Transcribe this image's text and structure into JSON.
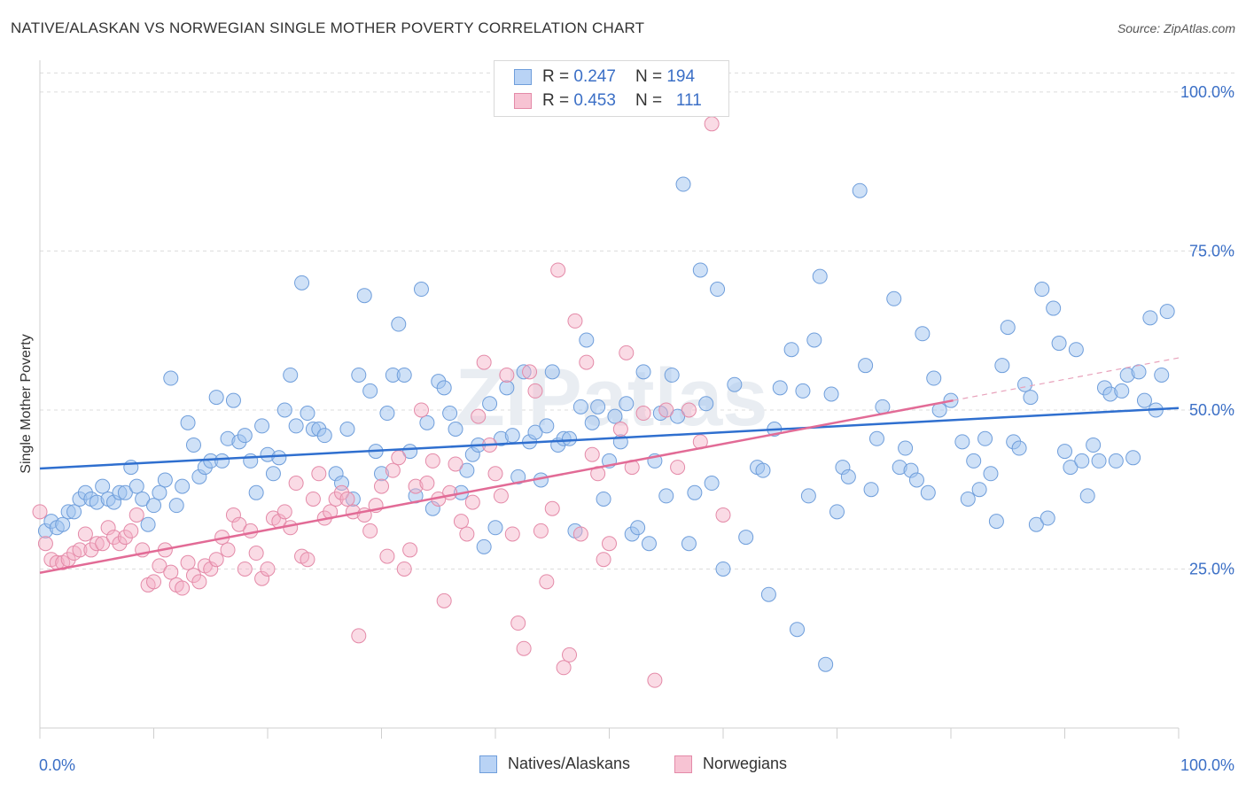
{
  "title": "NATIVE/ALASKAN VS NORWEGIAN SINGLE MOTHER POVERTY CORRELATION CHART",
  "source": "Source: ZipAtlas.com",
  "watermark": "ZIPatlas",
  "legend": {
    "rows": [
      {
        "r_label": "R =",
        "r_value": "0.247",
        "n_label": "N =",
        "n_value": "194",
        "color": "#6f9edb"
      },
      {
        "r_label": "R =",
        "r_value": "0.453",
        "n_label": "N =",
        "n_value": "111",
        "color": "#e48aa8"
      }
    ]
  },
  "bottom_legend": [
    "Natives/Alaskans",
    "Norwegians"
  ],
  "chart_data": {
    "type": "scatter",
    "ylabel": "Single Mother Poverty",
    "xlabel": "",
    "x_tick_labels": [
      "0.0%",
      "100.0%"
    ],
    "y_tick_labels": [
      "25.0%",
      "50.0%",
      "75.0%",
      "100.0%"
    ],
    "xlim": [
      0,
      100
    ],
    "ylim": [
      0,
      105
    ],
    "y_ticks": [
      25,
      50,
      75,
      100
    ],
    "grid": true,
    "legend_position": "top-center",
    "colors": {
      "natives": "#6f9edb",
      "natives_line": "#2f6fcf",
      "norwegians": "#e48aa8",
      "norwegians_line": "#e26b96",
      "axis_text": "#3b6fc6"
    },
    "trend_lines": [
      {
        "series": "Natives/Alaskans",
        "x": [
          0,
          100
        ],
        "y": [
          40.8,
          50.3
        ]
      },
      {
        "series": "Norwegians",
        "x": [
          0,
          80.2
        ],
        "y": [
          24.4,
          51.5
        ],
        "dashed_extension": {
          "x": [
            80.2,
            100
          ],
          "y": [
            51.5,
            58.2
          ]
        }
      }
    ],
    "series": [
      {
        "name": "Natives/Alaskans",
        "points": [
          [
            0.5,
            31
          ],
          [
            1,
            32.5
          ],
          [
            1.5,
            31.5
          ],
          [
            2,
            32
          ],
          [
            2.5,
            34
          ],
          [
            3,
            34
          ],
          [
            3.5,
            36
          ],
          [
            4,
            37
          ],
          [
            4.5,
            36
          ],
          [
            5,
            35.5
          ],
          [
            5.5,
            38
          ],
          [
            6,
            36
          ],
          [
            6.5,
            35.5
          ],
          [
            7,
            37
          ],
          [
            7.5,
            37
          ],
          [
            8,
            41
          ],
          [
            8.5,
            38
          ],
          [
            9,
            36
          ],
          [
            9.5,
            32
          ],
          [
            10,
            35
          ],
          [
            10.5,
            37
          ],
          [
            11,
            39
          ],
          [
            11.5,
            55
          ],
          [
            12,
            35
          ],
          [
            12.5,
            38
          ],
          [
            13,
            48
          ],
          [
            13.5,
            44.5
          ],
          [
            14,
            39.5
          ],
          [
            14.5,
            41
          ],
          [
            15,
            42
          ],
          [
            15.5,
            52
          ],
          [
            16,
            42
          ],
          [
            16.5,
            45.5
          ],
          [
            17,
            51.5
          ],
          [
            17.5,
            45
          ],
          [
            18,
            46
          ],
          [
            18.5,
            42
          ],
          [
            19,
            37
          ],
          [
            19.5,
            47.5
          ],
          [
            20,
            43
          ],
          [
            20.5,
            40
          ],
          [
            21,
            42.5
          ],
          [
            21.5,
            50
          ],
          [
            22,
            55.5
          ],
          [
            22.5,
            47.5
          ],
          [
            23,
            70
          ],
          [
            23.5,
            49.5
          ],
          [
            24,
            47
          ],
          [
            24.5,
            47
          ],
          [
            25,
            46
          ],
          [
            26,
            40
          ],
          [
            26.5,
            38.5
          ],
          [
            27,
            47
          ],
          [
            27.5,
            36
          ],
          [
            28,
            55.5
          ],
          [
            28.5,
            68
          ],
          [
            29,
            53
          ],
          [
            29.5,
            43.5
          ],
          [
            30,
            40
          ],
          [
            30.5,
            49.5
          ],
          [
            31,
            55.5
          ],
          [
            31.5,
            63.5
          ],
          [
            32,
            55.5
          ],
          [
            32.5,
            43.5
          ],
          [
            33,
            36.5
          ],
          [
            33.5,
            69
          ],
          [
            34,
            48
          ],
          [
            34.5,
            34.5
          ],
          [
            35,
            54.5
          ],
          [
            35.5,
            53.5
          ],
          [
            36,
            49.5
          ],
          [
            36.5,
            47
          ],
          [
            37,
            37
          ],
          [
            37.5,
            40.5
          ],
          [
            38,
            43
          ],
          [
            38.5,
            44.5
          ],
          [
            39,
            28.5
          ],
          [
            39.5,
            51
          ],
          [
            40,
            31.5
          ],
          [
            40.5,
            45.5
          ],
          [
            41,
            53.5
          ],
          [
            41.5,
            46
          ],
          [
            42,
            39.5
          ],
          [
            42.5,
            56
          ],
          [
            43,
            45
          ],
          [
            43.5,
            46.5
          ],
          [
            44,
            39
          ],
          [
            44.5,
            47.5
          ],
          [
            45,
            56
          ],
          [
            45.5,
            44.5
          ],
          [
            46,
            45.5
          ],
          [
            46.5,
            45.5
          ],
          [
            47,
            31
          ],
          [
            47.5,
            50.5
          ],
          [
            48,
            61
          ],
          [
            48.5,
            48
          ],
          [
            49,
            50.5
          ],
          [
            49.5,
            36
          ],
          [
            50,
            42
          ],
          [
            50.5,
            49
          ],
          [
            51,
            45
          ],
          [
            51.5,
            51
          ],
          [
            52,
            30.5
          ],
          [
            52.5,
            31.5
          ],
          [
            53,
            56
          ],
          [
            53.5,
            29
          ],
          [
            54,
            42
          ],
          [
            54.5,
            49.5
          ],
          [
            55,
            36.5
          ],
          [
            55.5,
            55.5
          ],
          [
            56,
            49
          ],
          [
            56.5,
            85.5
          ],
          [
            57,
            29
          ],
          [
            57.5,
            37
          ],
          [
            58,
            72
          ],
          [
            58.5,
            51
          ],
          [
            59,
            38.5
          ],
          [
            59.5,
            69
          ],
          [
            60,
            25
          ],
          [
            61,
            54
          ],
          [
            62,
            30
          ],
          [
            63,
            41
          ],
          [
            63.5,
            40.5
          ],
          [
            64,
            21
          ],
          [
            64.5,
            47
          ],
          [
            65,
            53.5
          ],
          [
            66,
            59.5
          ],
          [
            66.5,
            15.5
          ],
          [
            67,
            53
          ],
          [
            67.5,
            36.5
          ],
          [
            68,
            61
          ],
          [
            68.5,
            71
          ],
          [
            69,
            10
          ],
          [
            69.5,
            52.5
          ],
          [
            70,
            34
          ],
          [
            70.5,
            41
          ],
          [
            71,
            39.5
          ],
          [
            72,
            84.5
          ],
          [
            72.5,
            57
          ],
          [
            73,
            37.5
          ],
          [
            73.5,
            45.5
          ],
          [
            74,
            50.5
          ],
          [
            75,
            67.5
          ],
          [
            75.5,
            41
          ],
          [
            76,
            44
          ],
          [
            76.5,
            40.5
          ],
          [
            77,
            39
          ],
          [
            77.5,
            62
          ],
          [
            78,
            37
          ],
          [
            78.5,
            55
          ],
          [
            79,
            50
          ],
          [
            80,
            51.5
          ],
          [
            81,
            45
          ],
          [
            81.5,
            36
          ],
          [
            82,
            42
          ],
          [
            82.5,
            37.5
          ],
          [
            83,
            45.5
          ],
          [
            83.5,
            40
          ],
          [
            84,
            32.5
          ],
          [
            84.5,
            57
          ],
          [
            85,
            63
          ],
          [
            85.5,
            45
          ],
          [
            86,
            44
          ],
          [
            86.5,
            54
          ],
          [
            87,
            52
          ],
          [
            87.5,
            32
          ],
          [
            88,
            69
          ],
          [
            88.5,
            33
          ],
          [
            89,
            66
          ],
          [
            89.5,
            60.5
          ],
          [
            90,
            43.5
          ],
          [
            90.5,
            41
          ],
          [
            91,
            59.5
          ],
          [
            91.5,
            42
          ],
          [
            92,
            36.5
          ],
          [
            92.5,
            44.5
          ],
          [
            93,
            42
          ],
          [
            93.5,
            53.5
          ],
          [
            94,
            52.5
          ],
          [
            94.5,
            42
          ],
          [
            95,
            53
          ],
          [
            95.5,
            55.5
          ],
          [
            96,
            42.5
          ],
          [
            96.5,
            56
          ],
          [
            97,
            51.5
          ],
          [
            97.5,
            64.5
          ],
          [
            98,
            50
          ],
          [
            98.5,
            55.5
          ],
          [
            99,
            65.5
          ]
        ]
      },
      {
        "name": "Norwegians",
        "points": [
          [
            0,
            34
          ],
          [
            0.5,
            29
          ],
          [
            1,
            26.5
          ],
          [
            1.5,
            26
          ],
          [
            2,
            26
          ],
          [
            2.5,
            26.5
          ],
          [
            3,
            27.5
          ],
          [
            3.5,
            28
          ],
          [
            4,
            30.5
          ],
          [
            4.5,
            28
          ],
          [
            5,
            29
          ],
          [
            5.5,
            29
          ],
          [
            6,
            31.5
          ],
          [
            6.5,
            30
          ],
          [
            7,
            29
          ],
          [
            7.5,
            30
          ],
          [
            8,
            31
          ],
          [
            8.5,
            33.5
          ],
          [
            9,
            28
          ],
          [
            9.5,
            22.5
          ],
          [
            10,
            23
          ],
          [
            10.5,
            25.5
          ],
          [
            11,
            28
          ],
          [
            11.5,
            24.5
          ],
          [
            12,
            22.5
          ],
          [
            12.5,
            22
          ],
          [
            13,
            26
          ],
          [
            13.5,
            24
          ],
          [
            14,
            23
          ],
          [
            14.5,
            25.5
          ],
          [
            15,
            25
          ],
          [
            15.5,
            26.5
          ],
          [
            16,
            30
          ],
          [
            16.5,
            28
          ],
          [
            17,
            33.5
          ],
          [
            17.5,
            32
          ],
          [
            18,
            25
          ],
          [
            18.5,
            31
          ],
          [
            19,
            27.5
          ],
          [
            19.5,
            23.5
          ],
          [
            20,
            25
          ],
          [
            20.5,
            33
          ],
          [
            21,
            32.5
          ],
          [
            21.5,
            34
          ],
          [
            22,
            31.5
          ],
          [
            22.5,
            38.5
          ],
          [
            23,
            27
          ],
          [
            23.5,
            26.5
          ],
          [
            24,
            36
          ],
          [
            24.5,
            40
          ],
          [
            25,
            33
          ],
          [
            25.5,
            34
          ],
          [
            26,
            36
          ],
          [
            26.5,
            37
          ],
          [
            27,
            36
          ],
          [
            27.5,
            34
          ],
          [
            28,
            14.5
          ],
          [
            28.5,
            33.5
          ],
          [
            29,
            31
          ],
          [
            29.5,
            35
          ],
          [
            30,
            38
          ],
          [
            30.5,
            27
          ],
          [
            31,
            40.5
          ],
          [
            31.5,
            42.5
          ],
          [
            32,
            25
          ],
          [
            32.5,
            28
          ],
          [
            33,
            38
          ],
          [
            33.5,
            50
          ],
          [
            34,
            38.5
          ],
          [
            34.5,
            42
          ],
          [
            35,
            36
          ],
          [
            35.5,
            20
          ],
          [
            36,
            37
          ],
          [
            36.5,
            41.5
          ],
          [
            37,
            32.5
          ],
          [
            37.5,
            30.5
          ],
          [
            38,
            35.5
          ],
          [
            38.5,
            49
          ],
          [
            39,
            57.5
          ],
          [
            39.5,
            44.5
          ],
          [
            40,
            40
          ],
          [
            40.5,
            36.5
          ],
          [
            41,
            55.5
          ],
          [
            41.5,
            30.5
          ],
          [
            42,
            16.5
          ],
          [
            42.5,
            12.5
          ],
          [
            43,
            56
          ],
          [
            43.5,
            53
          ],
          [
            44,
            31
          ],
          [
            44.5,
            23
          ],
          [
            45,
            34.5
          ],
          [
            45.5,
            72
          ],
          [
            46,
            9.5
          ],
          [
            46.5,
            11.5
          ],
          [
            47,
            64
          ],
          [
            47.5,
            30.5
          ],
          [
            48,
            57.5
          ],
          [
            48.5,
            43
          ],
          [
            49,
            40
          ],
          [
            49.5,
            26.5
          ],
          [
            50,
            29
          ],
          [
            51,
            47
          ],
          [
            51.5,
            59
          ],
          [
            52,
            41
          ],
          [
            53,
            49.5
          ],
          [
            54,
            7.5
          ],
          [
            55,
            50
          ],
          [
            56,
            41
          ],
          [
            57,
            50
          ],
          [
            58,
            45
          ],
          [
            59,
            95
          ],
          [
            60,
            33.5
          ]
        ]
      }
    ]
  }
}
